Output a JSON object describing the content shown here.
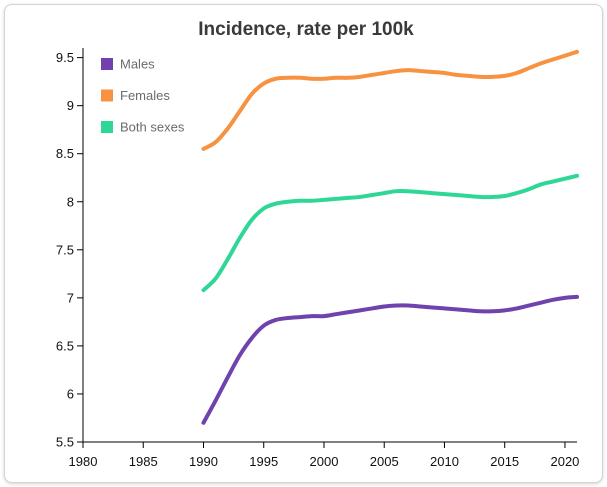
{
  "chart_data": {
    "type": "line",
    "title": "Incidence, rate per 100k",
    "xlabel": "",
    "ylabel": "",
    "xlim": [
      1980,
      2021
    ],
    "ylim": [
      5.5,
      9.6
    ],
    "xticks": [
      1980,
      1985,
      1990,
      1995,
      2000,
      2005,
      2010,
      2015,
      2020
    ],
    "yticks": [
      5.5,
      6,
      6.5,
      7,
      7.5,
      8,
      8.5,
      9,
      9.5
    ],
    "ytick_labels": [
      "5.5",
      "6",
      "6.5",
      "7",
      "7.5",
      "8",
      "8.5",
      "9",
      "9.5"
    ],
    "grid": false,
    "legend_position": "top-left",
    "x": [
      1990,
      1991,
      1992,
      1993,
      1994,
      1995,
      1996,
      1997,
      1998,
      1999,
      2000,
      2001,
      2002,
      2003,
      2004,
      2005,
      2006,
      2007,
      2008,
      2009,
      2010,
      2011,
      2012,
      2013,
      2014,
      2015,
      2016,
      2017,
      2018,
      2019,
      2020,
      2021
    ],
    "series": [
      {
        "name": "Males",
        "color": "#6f42ad",
        "values": [
          5.7,
          5.93,
          6.17,
          6.4,
          6.58,
          6.71,
          6.77,
          6.79,
          6.8,
          6.81,
          6.81,
          6.83,
          6.85,
          6.87,
          6.89,
          6.91,
          6.92,
          6.92,
          6.91,
          6.9,
          6.89,
          6.88,
          6.87,
          6.86,
          6.86,
          6.87,
          6.89,
          6.92,
          6.95,
          6.98,
          7.0,
          7.01
        ]
      },
      {
        "name": "Females",
        "color": "#f79240",
        "values": [
          8.55,
          8.62,
          8.76,
          8.94,
          9.12,
          9.23,
          9.28,
          9.29,
          9.29,
          9.28,
          9.28,
          9.29,
          9.29,
          9.3,
          9.32,
          9.34,
          9.36,
          9.37,
          9.36,
          9.35,
          9.34,
          9.32,
          9.31,
          9.3,
          9.3,
          9.31,
          9.34,
          9.39,
          9.44,
          9.48,
          9.52,
          9.56
        ]
      },
      {
        "name": "Both sexes",
        "color": "#2fd796",
        "values": [
          7.08,
          7.2,
          7.4,
          7.62,
          7.81,
          7.93,
          7.98,
          8.0,
          8.01,
          8.01,
          8.02,
          8.03,
          8.04,
          8.05,
          8.07,
          8.09,
          8.11,
          8.11,
          8.1,
          8.09,
          8.08,
          8.07,
          8.06,
          8.05,
          8.05,
          8.06,
          8.09,
          8.13,
          8.18,
          8.21,
          8.24,
          8.27
        ]
      }
    ]
  }
}
